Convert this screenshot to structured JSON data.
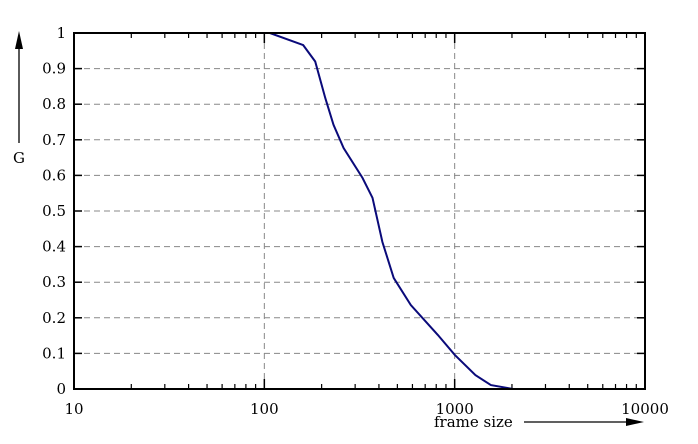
{
  "chart_data": {
    "type": "line",
    "title": "",
    "xlabel": "frame size",
    "ylabel": "G",
    "xscale": "log",
    "xlim": [
      10,
      10000
    ],
    "ylim": [
      0,
      1
    ],
    "grid": true,
    "x_ticks": [
      "10",
      "100",
      "1000",
      "10000"
    ],
    "y_ticks": [
      "0",
      "0.1",
      "0.2",
      "0.3",
      "0.4",
      "0.5",
      "0.6",
      "0.7",
      "0.8",
      "0.9",
      "1"
    ],
    "line_color": "#0a0a7a",
    "series": [
      {
        "x": [
          37,
          70,
          107,
          160,
          185,
          209,
          231,
          261,
          328,
          370,
          417,
          478,
          588,
          815,
          1000,
          1285,
          1550,
          2030
        ],
        "y": [
          1.0,
          1.0,
          1.0,
          0.966,
          0.92,
          0.817,
          0.742,
          0.677,
          0.593,
          0.537,
          0.413,
          0.312,
          0.236,
          0.152,
          0.096,
          0.039,
          0.011,
          0.0
        ]
      }
    ]
  }
}
